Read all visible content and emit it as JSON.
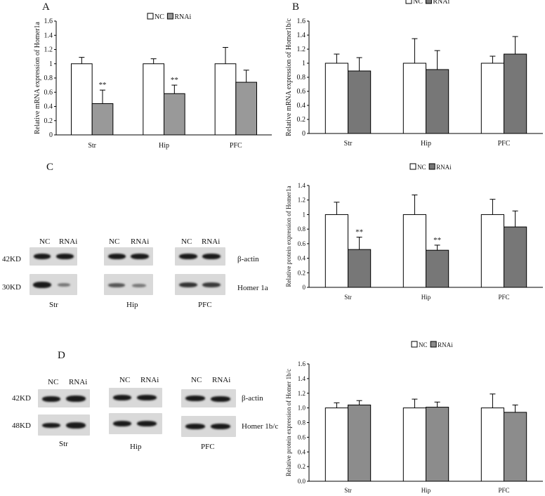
{
  "panels": {
    "A": {
      "letter": "A"
    },
    "B": {
      "letter": "B"
    },
    "C": {
      "letter": "C"
    },
    "D": {
      "letter": "D"
    }
  },
  "blots": {
    "C": {
      "lane_labels": [
        "NC",
        "RNAi"
      ],
      "groups": [
        "Str",
        "Hip",
        "PFC"
      ],
      "row_labels": [
        "β-actin",
        "Homer 1a"
      ],
      "mw_labels": [
        "42KD",
        "30KD"
      ]
    },
    "D": {
      "lane_labels": [
        "NC",
        "RNAi"
      ],
      "groups": [
        "Str",
        "Hip",
        "PFC"
      ],
      "row_labels": [
        "β-actin",
        "Homer 1b/c"
      ],
      "mw_labels": [
        "42KD",
        "48KD"
      ]
    }
  },
  "colors": {
    "nc": "#ffffff",
    "rnai_light": "#999999",
    "rnai_dark": "#777777",
    "rnai_mid": "#8c8c8c"
  },
  "chart_data": [
    {
      "id": "A",
      "type": "bar",
      "categories": [
        "Str",
        "Hip",
        "PFC"
      ],
      "series": [
        {
          "name": "NC",
          "values": [
            1.0,
            1.0,
            1.0
          ],
          "errors": [
            0.09,
            0.07,
            0.23
          ]
        },
        {
          "name": "RNAi",
          "values": [
            0.44,
            0.58,
            0.74
          ],
          "errors": [
            0.19,
            0.12,
            0.17
          ]
        }
      ],
      "significance": [
        "**",
        "**",
        ""
      ],
      "ylabel": "Relative mRNA expression of Homer1a",
      "ylim": [
        0,
        1.6
      ],
      "ytick_step": 0.2,
      "ytick_decimals": 1,
      "ytick_trim": true,
      "legend": "top-center"
    },
    {
      "id": "B",
      "type": "bar",
      "categories": [
        "Str",
        "Hip",
        "PFC"
      ],
      "series": [
        {
          "name": "NC",
          "values": [
            1.0,
            1.0,
            1.0
          ],
          "errors": [
            0.13,
            0.35,
            0.1
          ]
        },
        {
          "name": "RNAi",
          "values": [
            0.89,
            0.91,
            1.13
          ],
          "errors": [
            0.19,
            0.27,
            0.25
          ]
        }
      ],
      "significance": [
        "",
        "",
        ""
      ],
      "ylabel": "Relative mRNA expression of Homer1b/c",
      "ylim": [
        0,
        1.6
      ],
      "ytick_step": 0.2,
      "ytick_decimals": 1,
      "ytick_trim": true,
      "legend": "top-center"
    },
    {
      "id": "C",
      "type": "bar",
      "categories": [
        "Str",
        "Hip",
        "PFC"
      ],
      "series": [
        {
          "name": "NC",
          "values": [
            1.0,
            1.0,
            1.0
          ],
          "errors": [
            0.17,
            0.27,
            0.21
          ]
        },
        {
          "name": "RNAi",
          "values": [
            0.52,
            0.51,
            0.83
          ],
          "errors": [
            0.17,
            0.07,
            0.22
          ]
        }
      ],
      "significance": [
        "**",
        "**",
        ""
      ],
      "ylabel": "Relative protein expression of Homer1a",
      "ylim": [
        0,
        1.4
      ],
      "ytick_step": 0.2,
      "ytick_decimals": 1,
      "ytick_trim": true,
      "legend": "top-center"
    },
    {
      "id": "D",
      "type": "bar",
      "categories": [
        "Str",
        "Hip",
        "PFC"
      ],
      "series": [
        {
          "name": "NC",
          "values": [
            1.0,
            1.0,
            1.0
          ],
          "errors": [
            0.07,
            0.12,
            0.19
          ]
        },
        {
          "name": "RNAi",
          "values": [
            1.04,
            1.01,
            0.94
          ],
          "errors": [
            0.06,
            0.07,
            0.1
          ]
        }
      ],
      "significance": [
        "",
        "",
        ""
      ],
      "ylabel": "Relative protein expression of Homer 1b/c",
      "ylim": [
        0,
        1.6
      ],
      "ytick_step": 0.2,
      "ytick_decimals": 1,
      "ytick_trim": false,
      "legend": "top-center"
    }
  ]
}
